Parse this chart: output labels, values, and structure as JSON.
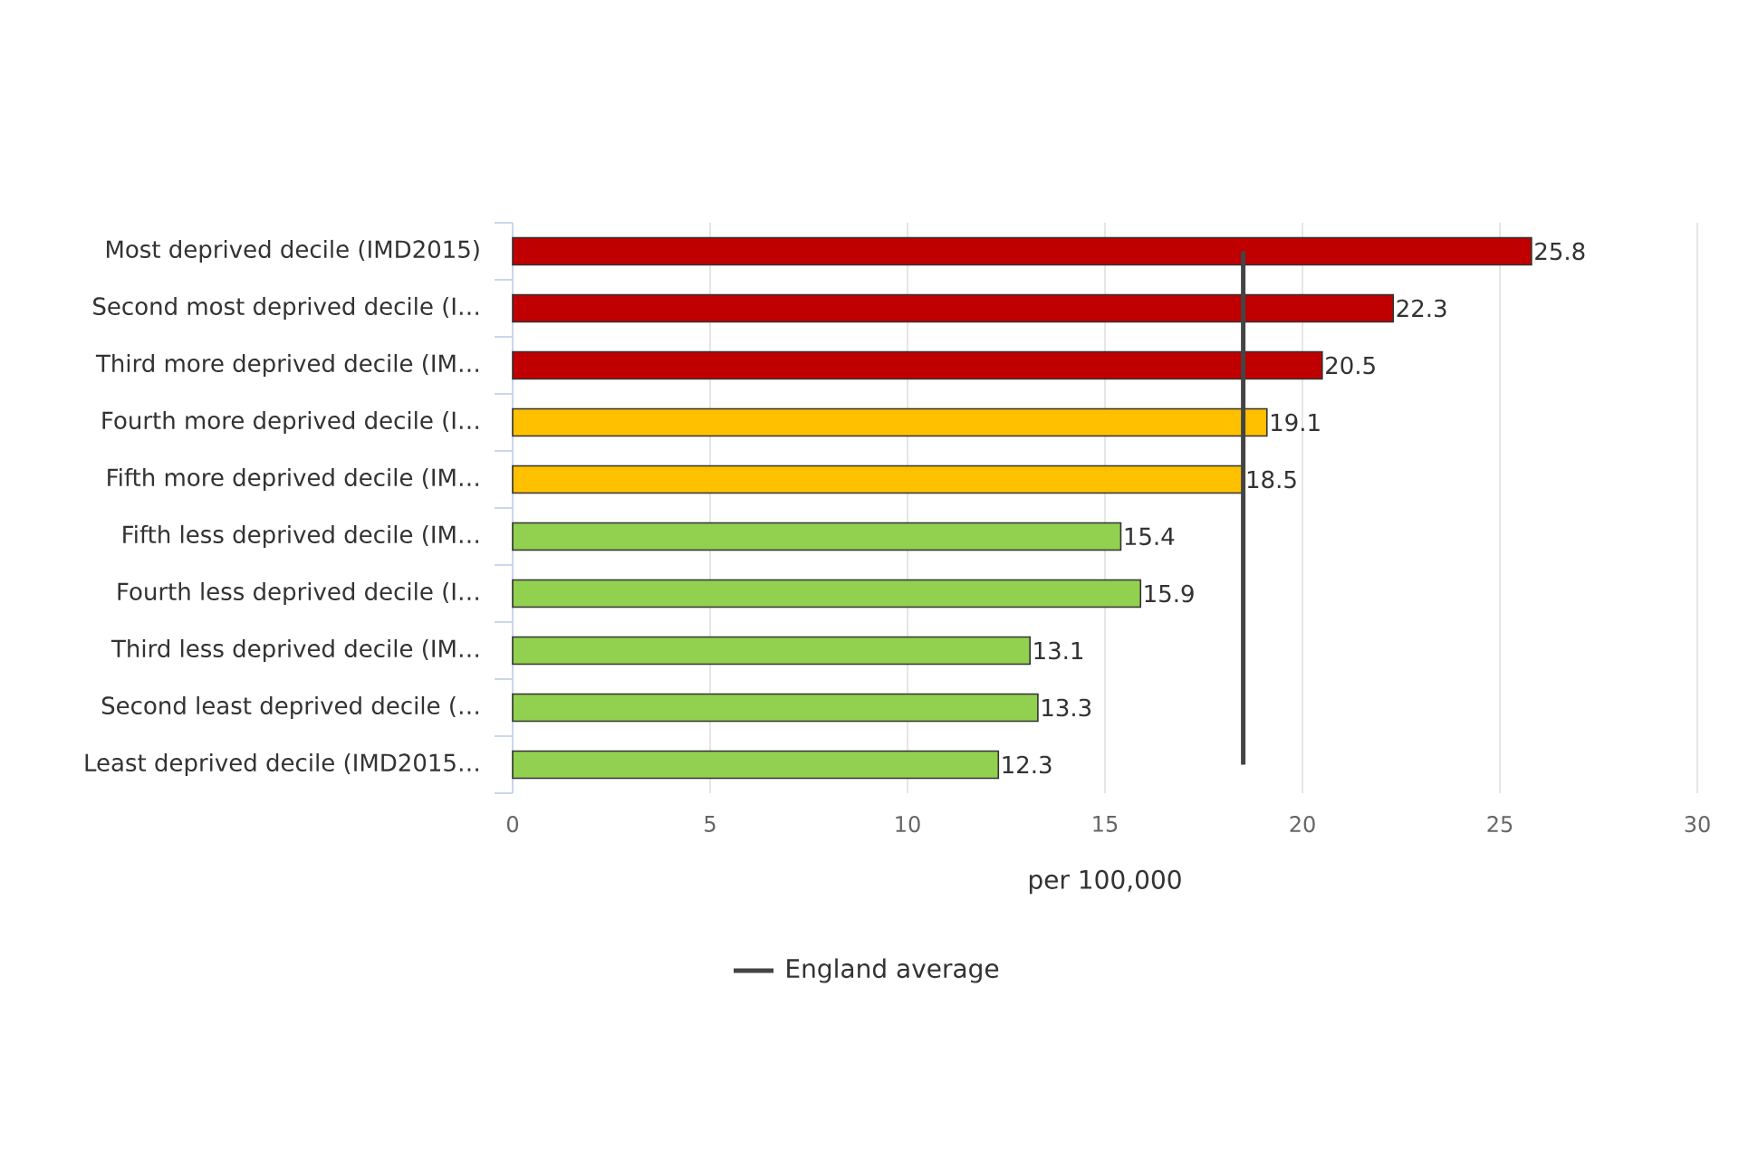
{
  "chart_data": {
    "type": "bar",
    "orientation": "horizontal",
    "categories": [
      "Most deprived decile (IMD2015)",
      "Second most deprived decile (I…",
      "Third more deprived decile (IM…",
      "Fourth more deprived decile (I…",
      "Fifth more deprived decile (IM…",
      "Fifth less deprived decile (IM…",
      "Fourth less deprived decile (I…",
      "Third less deprived decile (IM…",
      "Second least deprived decile (…",
      "Least deprived decile (IMD2015…"
    ],
    "values": [
      25.8,
      22.3,
      20.5,
      19.1,
      18.5,
      15.4,
      15.9,
      13.1,
      13.3,
      12.3
    ],
    "colors": [
      "#c00000",
      "#c00000",
      "#c00000",
      "#ffc000",
      "#ffc000",
      "#92d050",
      "#92d050",
      "#92d050",
      "#92d050",
      "#92d050"
    ],
    "xlabel": "per 100,000",
    "xlim": [
      0,
      30
    ],
    "xticks": [
      0,
      5,
      10,
      15,
      20,
      25,
      30
    ],
    "grid": "x",
    "data_labels": true,
    "legend": "bottom",
    "ref_lines": [
      {
        "axis": "x",
        "value": 18.5,
        "label": "England average",
        "color": "#444444"
      }
    ]
  }
}
